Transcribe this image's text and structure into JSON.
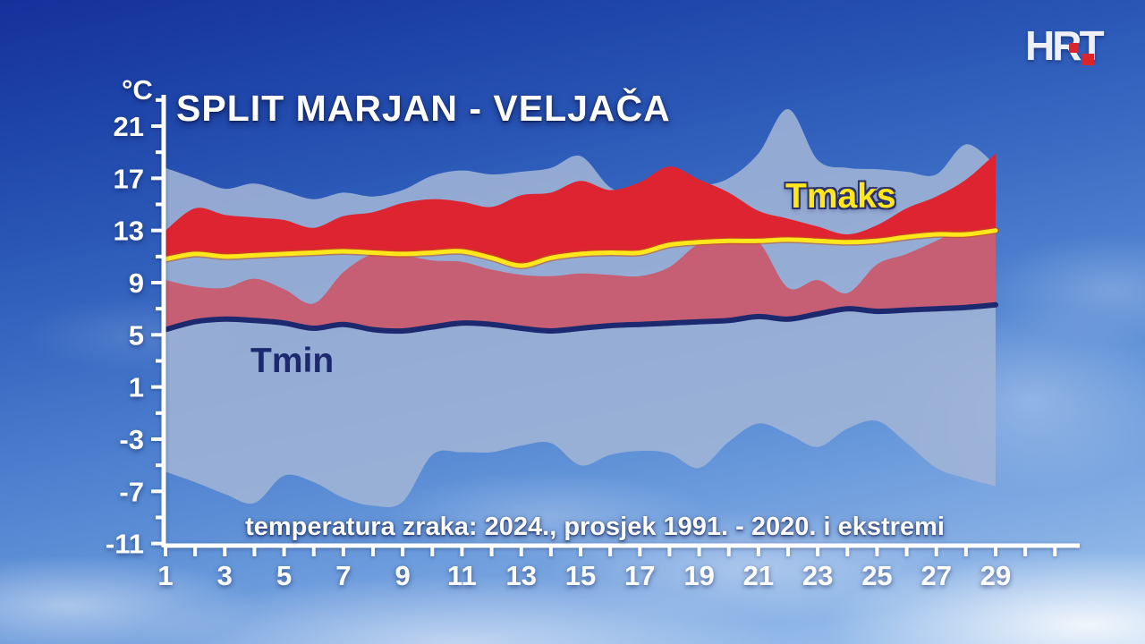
{
  "header": {
    "title": "SPLIT MARJAN - VELJAČA",
    "caption": "temperatura zraka: 2024., prosjek 1991. - 2020. i ekstremi",
    "logo": "HRT"
  },
  "labels": {
    "tmaks": "Tmaks",
    "tmin": "Tmin"
  },
  "colors": {
    "axis": "#ffffff",
    "extremes_band": "rgba(160,180,214,0.88)",
    "band_2024_max": "#de2430",
    "band_2024_min": "#c75f74",
    "avg_tmax_line": "#ffe71c",
    "avg_tmin_line": "#1c296f",
    "logo_red": "#d9252b"
  },
  "chart_data": {
    "type": "area",
    "title": "SPLIT MARJAN - VELJAČA",
    "subtitle": "temperatura zraka: 2024., prosjek 1991. - 2020. i ekstremi",
    "y_axis": {
      "unit": "°C",
      "labeled_ticks": [
        21,
        17,
        13,
        9,
        5,
        1,
        -3,
        -7,
        -11
      ],
      "minor_ticks": [
        23,
        19,
        15,
        11,
        7,
        3,
        -1,
        -5,
        -9
      ],
      "range_shown": [
        -11,
        23
      ]
    },
    "x_axis": {
      "labeled_days": [
        1,
        3,
        5,
        7,
        9,
        11,
        13,
        15,
        17,
        19,
        21,
        23,
        25,
        27,
        29
      ],
      "tick_days_from": 1,
      "tick_days_to": 31
    },
    "x": [
      1,
      2,
      3,
      4,
      5,
      6,
      7,
      8,
      9,
      10,
      11,
      12,
      13,
      14,
      15,
      16,
      17,
      18,
      19,
      20,
      21,
      22,
      23,
      24,
      25,
      26,
      27,
      28,
      29
    ],
    "series": {
      "record_max": [
        17.8,
        17.0,
        16.2,
        16.6,
        16.0,
        15.4,
        15.9,
        15.6,
        16.1,
        17.2,
        17.6,
        17.3,
        17.5,
        17.8,
        18.7,
        16.3,
        15.5,
        15.6,
        16.3,
        17.0,
        18.9,
        22.3,
        18.4,
        17.8,
        17.7,
        17.5,
        17.3,
        19.6,
        18.0
      ],
      "record_min": [
        -5.5,
        -6.3,
        -7.2,
        -7.9,
        -5.8,
        -6.3,
        -7.5,
        -8.1,
        -7.8,
        -4.2,
        -4.0,
        -4.0,
        -3.5,
        -3.3,
        -5.0,
        -4.2,
        -3.9,
        -4.1,
        -5.2,
        -3.2,
        -1.8,
        -2.6,
        -3.6,
        -2.2,
        -1.6,
        -3.3,
        -5.2,
        -6.0,
        -6.6
      ],
      "tmax_2024": [
        13.0,
        14.7,
        14.2,
        14.0,
        13.8,
        13.2,
        14.1,
        14.4,
        15.1,
        15.4,
        15.2,
        14.8,
        15.7,
        15.9,
        16.8,
        16.1,
        16.7,
        17.9,
        16.9,
        15.9,
        14.5,
        13.9,
        13.3,
        12.7,
        13.4,
        14.7,
        15.6,
        16.9,
        18.9
      ],
      "tmin_2024": [
        9.2,
        8.7,
        8.6,
        9.3,
        8.5,
        7.4,
        9.8,
        11.2,
        11.1,
        10.7,
        10.6,
        10.0,
        9.6,
        9.5,
        9.7,
        9.6,
        9.5,
        10.2,
        12.0,
        12.3,
        12.1,
        8.6,
        9.2,
        8.2,
        10.4,
        11.2,
        12.2,
        13.3,
        12.8
      ],
      "avg_tmax": [
        10.8,
        11.2,
        11.0,
        11.1,
        11.2,
        11.3,
        11.4,
        11.3,
        11.2,
        11.3,
        11.4,
        10.9,
        10.3,
        10.9,
        11.2,
        11.3,
        11.3,
        11.9,
        12.1,
        12.2,
        12.2,
        12.3,
        12.2,
        12.1,
        12.2,
        12.5,
        12.7,
        12.7,
        13.0
      ],
      "avg_tmin": [
        5.4,
        6.0,
        6.2,
        6.1,
        5.9,
        5.5,
        5.8,
        5.4,
        5.3,
        5.6,
        5.9,
        5.8,
        5.5,
        5.3,
        5.5,
        5.7,
        5.8,
        5.9,
        6.0,
        6.1,
        6.4,
        6.2,
        6.6,
        7.0,
        6.8,
        6.9,
        7.0,
        7.1,
        7.3
      ]
    }
  }
}
